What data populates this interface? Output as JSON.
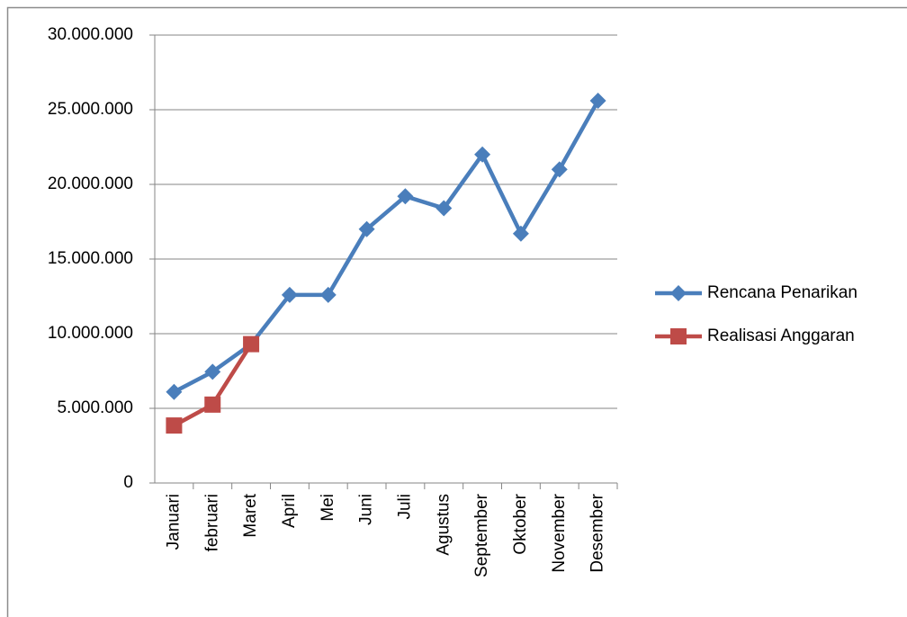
{
  "chart_data": {
    "type": "line",
    "categories": [
      "Januari",
      "februari",
      "Maret",
      "April",
      "Mei",
      "Juni",
      "Juli",
      "Agustus",
      "September",
      "Oktober",
      "November",
      "Desember"
    ],
    "series": [
      {
        "name": "Rencana Penarikan",
        "color": "#4a7ebb",
        "marker": "diamond",
        "values": [
          6100000,
          7450000,
          9300000,
          12600000,
          12600000,
          17000000,
          19200000,
          18400000,
          22000000,
          16700000,
          21000000,
          25600000
        ]
      },
      {
        "name": "Realisasi Anggaran",
        "color": "#be4b48",
        "marker": "square",
        "values": [
          3850000,
          5250000,
          9300000,
          null,
          null,
          null,
          null,
          null,
          null,
          null,
          null,
          null
        ]
      }
    ],
    "ylim": [
      0,
      30000000
    ],
    "yticks": [
      0,
      {
        "value": 5000000,
        "label": "5.000.000"
      },
      {
        "value": 10000000,
        "label": "10.000.000"
      },
      {
        "value": 15000000,
        "label": "15.000.000"
      },
      {
        "value": 20000000,
        "label": "20.000.000"
      },
      {
        "value": 25000000,
        "label": "25.000.000"
      },
      {
        "value": 30000000,
        "label": "30.000.000"
      }
    ],
    "grid": true,
    "legend": "right"
  }
}
